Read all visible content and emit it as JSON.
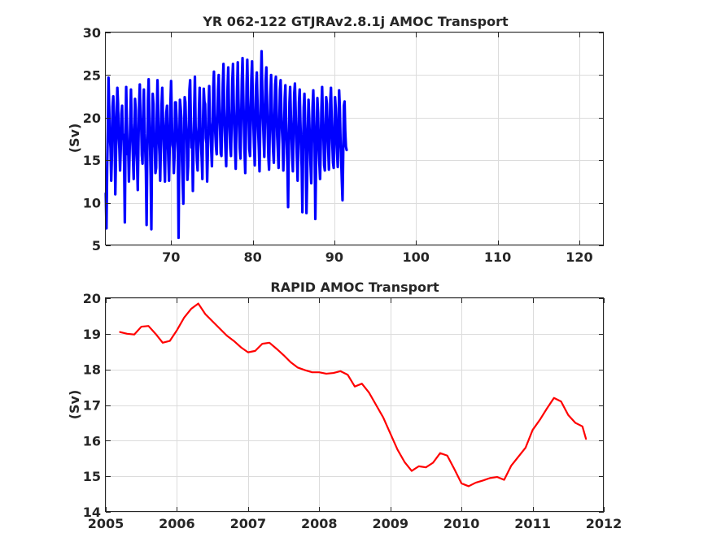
{
  "chart_data": [
    {
      "type": "line",
      "title": "YR 062-122 GTJRAv2.8.1j AMOC Transport",
      "xlabel": "",
      "ylabel": "(Sv)",
      "xlim": [
        62,
        123
      ],
      "ylim": [
        5,
        30
      ],
      "xticks": [
        70,
        80,
        90,
        100,
        110,
        120
      ],
      "yticks": [
        5,
        10,
        15,
        20,
        25,
        30
      ],
      "grid": true,
      "series": [
        {
          "color": "#0000ff",
          "style": "monthly",
          "x_start": 62,
          "x_step": 0.0833333,
          "values": [
            11.1,
            7.0,
            14.2,
            18.6,
            24.7,
            21.2,
            17.9,
            16.4,
            12.6,
            15.6,
            21.3,
            22.5,
            20.5,
            18.1,
            11.0,
            15.5,
            20.0,
            23.5,
            21.6,
            18.0,
            16.4,
            13.8,
            16.4,
            20.4,
            21.4,
            17.5,
            18.0,
            14.5,
            7.7,
            17.8,
            23.6,
            19.3,
            15.7,
            16.4,
            12.5,
            15.9,
            19.5,
            23.3,
            19.4,
            17.7,
            15.2,
            12.8,
            17.2,
            22.2,
            20.9,
            16.7,
            14.8,
            11.5,
            17.0,
            21.6,
            23.9,
            20.0,
            19.3,
            15.6,
            14.6,
            20.1,
            23.3,
            18.1,
            16.4,
            13.7,
            7.4,
            15.9,
            22.0,
            24.5,
            20.4,
            17.2,
            13.1,
            6.9,
            17.0,
            22.8,
            21.6,
            17.4,
            16.4,
            13.5,
            14.1,
            20.3,
            24.4,
            21.1,
            17.5,
            15.6,
            12.6,
            16.9,
            21.5,
            23.5,
            20.1,
            17.4,
            14.7,
            12.5,
            18.6,
            20.6,
            21.4,
            17.7,
            14.9,
            12.6,
            16.9,
            21.6,
            24.3,
            20.2,
            16.8,
            16.4,
            13.5,
            15.4,
            21.8,
            21.8,
            20.0,
            17.4,
            15.9,
            5.9,
            16.6,
            22.1,
            21.2,
            20.0,
            14.9,
            12.5,
            9.9,
            16.8,
            22.4,
            21.8,
            19.0,
            17.4,
            12.7,
            14.3,
            18.3,
            23.3,
            24.4,
            19.7,
            16.5,
            16.8,
            11.4,
            16.4,
            21.1,
            24.8,
            19.0,
            17.6,
            14.9,
            13.8,
            17.3,
            21.1,
            23.5,
            18.8,
            16.9,
            15.2,
            12.8,
            19.8,
            23.4,
            21.9,
            21.6,
            17.6,
            17.0,
            12.5,
            16.0,
            21.0,
            23.7,
            19.5,
            18.6,
            16.3,
            14.3,
            18.0,
            23.5,
            25.4,
            20.5,
            18.2,
            16.6,
            15.7,
            19.7,
            23.3,
            25.0,
            21.5,
            18.8,
            15.8,
            15.5,
            19.5,
            23.9,
            26.3,
            21.1,
            18.4,
            16.1,
            14.3,
            18.9,
            23.4,
            25.9,
            21.3,
            18.5,
            16.4,
            15.5,
            19.5,
            24.4,
            26.3,
            21.9,
            18.6,
            16.2,
            14.0,
            18.6,
            23.2,
            26.5,
            22.2,
            19.1,
            16.4,
            15.2,
            19.8,
            24.4,
            27.0,
            22.9,
            19.4,
            16.0,
            13.5,
            18.2,
            23.9,
            26.8,
            22.7,
            19.9,
            16.3,
            15.5,
            19.4,
            24.5,
            26.6,
            22.8,
            19.3,
            16.5,
            14.4,
            18.9,
            23.8,
            25.3,
            21.8,
            18.5,
            16.4,
            13.7,
            18.6,
            23.7,
            27.8,
            23.4,
            20.2,
            17.6,
            15.4,
            19.7,
            24.3,
            25.9,
            22.3,
            18.7,
            15.4,
            13.9,
            18.3,
            22.6,
            25.0,
            21.3,
            18.3,
            16.1,
            14.7,
            19.6,
            23.9,
            24.8,
            21.4,
            17.8,
            16.0,
            14.1,
            18.6,
            23.3,
            24.4,
            20.9,
            18.5,
            16.9,
            13.8,
            17.6,
            22.2,
            23.8,
            19.6,
            16.8,
            14.2,
            9.5,
            16.4,
            21.8,
            23.6,
            20.4,
            17.6,
            15.4,
            13.7,
            18.2,
            22.8,
            24.0,
            21.0,
            17.5,
            15.1,
            12.6,
            16.9,
            21.8,
            23.3,
            19.7,
            16.8,
            14.1,
            8.9,
            15.9,
            21.2,
            22.8,
            19.3,
            16.3,
            8.8,
            12.9,
            18.5,
            22.1,
            20.0,
            17.3,
            14.4,
            12.3,
            17.0,
            21.3,
            23.2,
            20.1,
            16.9,
            8.1,
            13.9,
            18.2,
            22.3,
            20.5,
            17.1,
            14.6,
            12.8,
            16.9,
            21.1,
            23.6,
            20.4,
            17.6,
            14.4,
            13.8,
            18.0,
            22.4,
            21.6,
            18.9,
            16.3,
            13.9,
            17.7,
            22.0,
            23.5,
            20.0,
            17.0,
            14.7,
            14.1,
            18.0,
            22.4,
            21.1,
            18.1,
            15.8,
            14.2,
            18.6,
            23.2,
            21.2,
            17.4,
            15.1,
            12.6,
            10.3,
            15.8,
            21.4,
            21.9,
            18.3,
            16.6,
            16.2
          ]
        }
      ]
    },
    {
      "type": "line",
      "title": "RAPID AMOC Transport",
      "xlabel": "",
      "ylabel": "(Sv)",
      "xlim": [
        2005,
        2012
      ],
      "ylim": [
        14,
        20
      ],
      "xticks": [
        2005,
        2006,
        2007,
        2008,
        2009,
        2010,
        2011,
        2012
      ],
      "yticks": [
        14,
        15,
        16,
        17,
        18,
        19,
        20
      ],
      "grid": true,
      "series": [
        {
          "color": "#ff0000",
          "x": [
            2005.2,
            2005.3,
            2005.4,
            2005.5,
            2005.6,
            2005.7,
            2005.8,
            2005.9,
            2006.0,
            2006.1,
            2006.2,
            2006.3,
            2006.4,
            2006.5,
            2006.6,
            2006.7,
            2006.8,
            2006.9,
            2007.0,
            2007.1,
            2007.2,
            2007.3,
            2007.4,
            2007.5,
            2007.6,
            2007.7,
            2007.8,
            2007.9,
            2008.0,
            2008.1,
            2008.2,
            2008.3,
            2008.4,
            2008.5,
            2008.6,
            2008.7,
            2008.8,
            2008.9,
            2009.0,
            2009.1,
            2009.2,
            2009.3,
            2009.4,
            2009.5,
            2009.6,
            2009.7,
            2009.8,
            2009.9,
            2010.0,
            2010.1,
            2010.2,
            2010.3,
            2010.4,
            2010.5,
            2010.6,
            2010.7,
            2010.8,
            2010.9,
            2011.0,
            2011.1,
            2011.2,
            2011.3,
            2011.4,
            2011.5,
            2011.6,
            2011.7,
            2011.75
          ],
          "values": [
            19.05,
            19.0,
            18.98,
            19.2,
            19.22,
            19.0,
            18.75,
            18.8,
            19.1,
            19.45,
            19.7,
            19.85,
            19.55,
            19.35,
            19.15,
            18.95,
            18.8,
            18.62,
            18.48,
            18.52,
            18.72,
            18.75,
            18.58,
            18.4,
            18.2,
            18.05,
            17.98,
            17.92,
            17.92,
            17.88,
            17.9,
            17.95,
            17.85,
            17.52,
            17.6,
            17.35,
            17.0,
            16.65,
            16.2,
            15.75,
            15.4,
            15.15,
            15.28,
            15.25,
            15.38,
            15.65,
            15.58,
            15.2,
            14.8,
            14.72,
            14.82,
            14.88,
            14.95,
            14.98,
            14.9,
            15.3,
            15.55,
            15.8,
            16.3,
            16.58,
            16.9,
            17.2,
            17.1,
            16.72,
            16.5,
            16.4,
            16.05
          ]
        }
      ]
    }
  ]
}
